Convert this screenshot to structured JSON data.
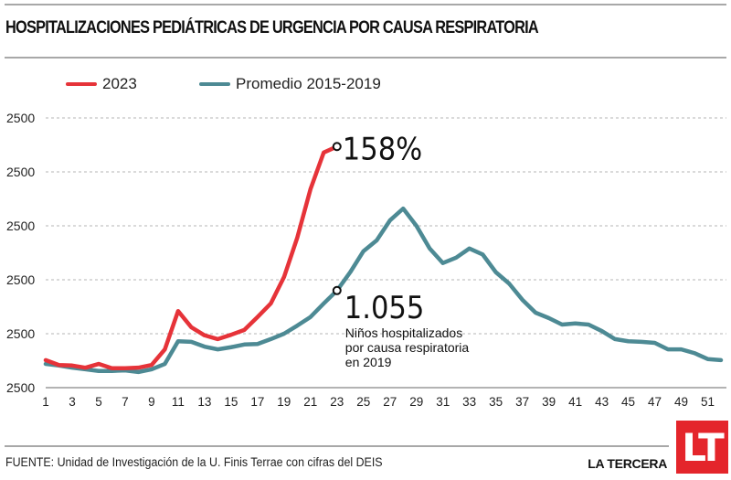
{
  "header": {
    "title": "HOSPITALIZACIONES PEDIÁTRICAS DE URGENCIA POR CAUSA RESPIRATORIA"
  },
  "legend": [
    {
      "label": "2023",
      "color": "#e63339"
    },
    {
      "label": "Promedio 2015-2019",
      "color": "#4d8a94"
    }
  ],
  "annotations": {
    "pct_value": "158%",
    "count_value": "1.055",
    "count_desc_lines": [
      "Niños hospitalizados",
      "por causa respiratoria",
      "en 2019"
    ]
  },
  "footer": {
    "source": "FUENTE: Unidad de Investigación de la U. Finis Terrae con cifras del DEIS",
    "brand": "LA TERCERA",
    "logo_text": "LT",
    "logo_color": "#e4252b"
  },
  "chart_data": {
    "type": "line",
    "title": "HOSPITALIZACIONES PEDIÁTRICAS DE URGENCIA POR CAUSA RESPIRATORIA",
    "xlabel": "",
    "ylabel": "",
    "x": [
      1,
      2,
      3,
      4,
      5,
      6,
      7,
      8,
      9,
      10,
      11,
      12,
      13,
      14,
      15,
      16,
      17,
      18,
      19,
      20,
      21,
      22,
      23,
      24,
      25,
      26,
      27,
      28,
      29,
      30,
      31,
      32,
      33,
      34,
      35,
      36,
      37,
      38,
      39,
      40,
      41,
      42,
      43,
      44,
      45,
      46,
      47,
      48,
      49,
      50,
      51,
      52
    ],
    "x_tick_labels": [
      "1",
      "3",
      "5",
      "7",
      "9",
      "11",
      "13",
      "15",
      "17",
      "19",
      "21",
      "23",
      "25",
      "27",
      "29",
      "31",
      "33",
      "35",
      "37",
      "39",
      "41",
      "43",
      "45",
      "47",
      "49",
      "51"
    ],
    "x_tick_values": [
      1,
      3,
      5,
      7,
      9,
      11,
      13,
      15,
      17,
      19,
      21,
      23,
      25,
      27,
      29,
      31,
      33,
      35,
      37,
      39,
      41,
      43,
      45,
      47,
      49,
      51
    ],
    "y_tick_labels": [
      "2500",
      "2500",
      "2500",
      "2500",
      "2500",
      "2500"
    ],
    "y_tick_values": [
      0,
      1,
      2,
      3,
      4,
      5
    ],
    "ylim": [
      0,
      5
    ],
    "xlim": [
      1,
      52
    ],
    "y_units_note": "relative (gridline steps)",
    "grid": true,
    "legend_position": "top-left",
    "series": [
      {
        "name": "2023",
        "color": "#e63339",
        "values": [
          0.51,
          0.42,
          0.41,
          0.37,
          0.44,
          0.36,
          0.36,
          0.37,
          0.42,
          0.71,
          1.42,
          1.12,
          0.97,
          0.9,
          0.98,
          1.07,
          1.31,
          1.56,
          2.05,
          2.78,
          3.68,
          4.36,
          4.47
        ]
      },
      {
        "name": "Promedio 2015-2019",
        "color": "#4d8a94",
        "values": [
          0.44,
          0.41,
          0.37,
          0.34,
          0.31,
          0.31,
          0.32,
          0.29,
          0.34,
          0.44,
          0.86,
          0.85,
          0.76,
          0.71,
          0.75,
          0.8,
          0.81,
          0.9,
          1.0,
          1.15,
          1.31,
          1.56,
          1.8,
          2.14,
          2.53,
          2.73,
          3.1,
          3.32,
          3.0,
          2.58,
          2.31,
          2.41,
          2.58,
          2.47,
          2.14,
          1.93,
          1.63,
          1.39,
          1.29,
          1.17,
          1.19,
          1.17,
          1.05,
          0.9,
          0.86,
          0.85,
          0.83,
          0.71,
          0.71,
          0.64,
          0.53,
          0.51
        ]
      }
    ],
    "annotations": [
      {
        "series": "2023",
        "x": 23,
        "text": "158%"
      },
      {
        "series": "Promedio 2015-2019",
        "x": 23,
        "text": "1.055",
        "subtext": "Niños hospitalizados por causa respiratoria en 2019"
      }
    ]
  }
}
